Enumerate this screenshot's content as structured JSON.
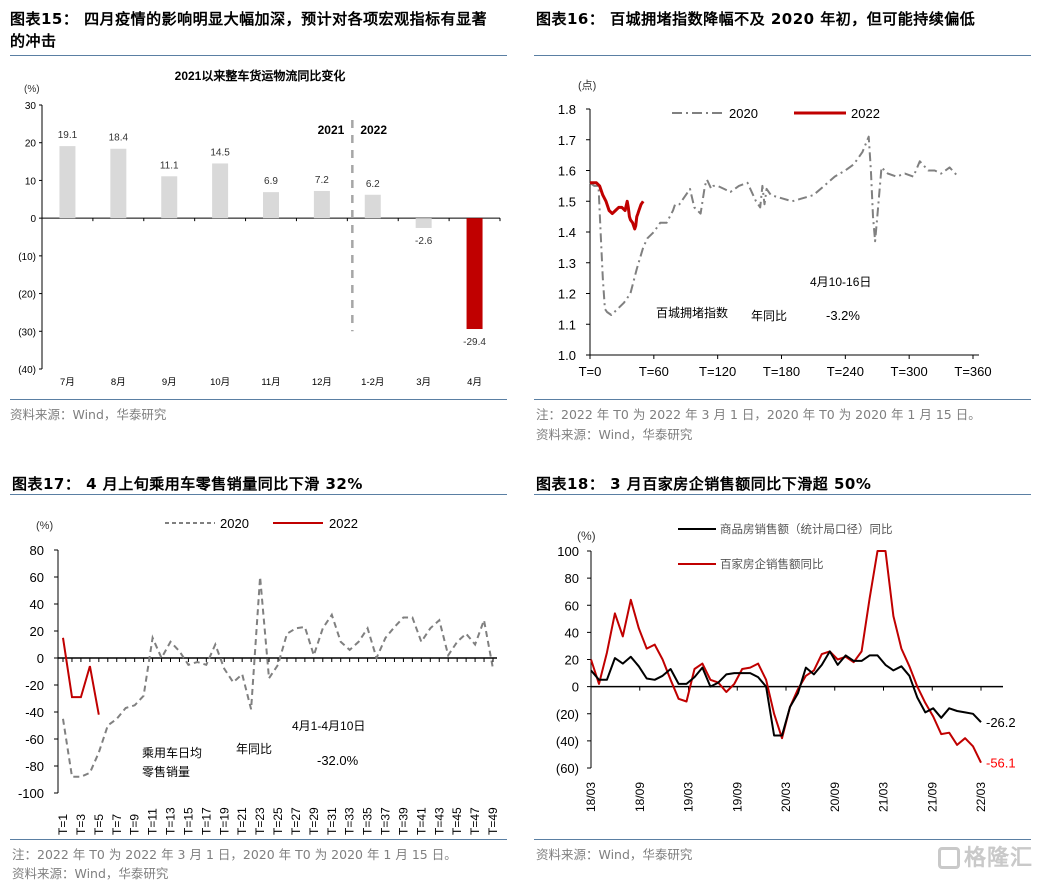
{
  "panels": {
    "p15": {
      "title_line1": "图表15： 四月疫情的影响明显大幅加深，预计对各项宏观指标有显著",
      "title_line2": "的冲击",
      "source": "资料来源：Wind，华泰研究"
    },
    "p16": {
      "title": "图表16： 百城拥堵指数降幅不及 2020 年初，但可能持续偏低",
      "note": "注：2022 年 T0 为 2022 年 3 月 1 日，2020 年 T0 为 2020 年 1 月 15 日。",
      "source": "资料来源：Wind，华泰研究"
    },
    "p17": {
      "title": "图表17： 4 月上旬乘用车零售销量同比下滑 32%",
      "note": "注：2022 年 T0 为 2022 年 3 月 1 日，2020 年 T0 为 2020 年 1 月 15 日。",
      "source": "资料来源：Wind，华泰研究"
    },
    "p18": {
      "title": "图表18： 3 月百家房企销售额同比下滑超 50%",
      "source": "资料来源：Wind，华泰研究"
    }
  },
  "watermark": "格隆汇",
  "colors": {
    "red": "#c00000",
    "gray_bar": "#d9d9d9",
    "gray_line": "#808080",
    "black": "#000000",
    "rule": "#5a7fa3"
  },
  "chart_data": [
    {
      "id": "c15",
      "type": "bar",
      "title": "2021以来整车货运物流同比变化",
      "ylabel": "(%)",
      "ylim": [
        -40,
        30
      ],
      "yticks": [
        30,
        20,
        10,
        0,
        -10,
        -20,
        -30,
        -40
      ],
      "ytick_labels": [
        "30",
        "20",
        "10",
        "0",
        "(10)",
        "(20)",
        "(30)",
        "(40)"
      ],
      "categories": [
        "7月",
        "8月",
        "9月",
        "10月",
        "11月",
        "12月",
        "1-2月",
        "3月",
        "4月"
      ],
      "values": [
        19.1,
        18.4,
        11.1,
        14.5,
        6.9,
        7.2,
        6.2,
        -2.6,
        -29.4
      ],
      "data_labels": [
        "19.1",
        "18.4",
        "11.1",
        "14.5",
        "6.9",
        "7.2",
        "6.2",
        "-2.6",
        "-29.4"
      ],
      "highlight_index": 8,
      "divider_after_index": 5,
      "divider_labels": [
        "2021",
        "2022"
      ],
      "grid": false
    },
    {
      "id": "c16",
      "type": "line",
      "ylabel": "(点)",
      "ylim": [
        1.0,
        1.8
      ],
      "yticks": [
        "1.8",
        "1.7",
        "1.6",
        "1.5",
        "1.4",
        "1.3",
        "1.2",
        "1.1",
        "1.0"
      ],
      "xlim": [
        0,
        360
      ],
      "xticks": [
        "T=0",
        "T=60",
        "T=120",
        "T=180",
        "T=240",
        "T=300",
        "T=360"
      ],
      "legend": [
        "2020",
        "2022"
      ],
      "legend_position": "top",
      "annotations": [
        "4月10-16日",
        "百城拥堵指数",
        "年同比",
        "-3.2%"
      ],
      "series": [
        {
          "name": "2020",
          "style": "dash-dot",
          "color": "#808080",
          "x": [
            0,
            4,
            8,
            10,
            12,
            14,
            16,
            20,
            26,
            32,
            38,
            44,
            50,
            54,
            60,
            66,
            72,
            78,
            80,
            84,
            86,
            90,
            94,
            98,
            104,
            108,
            110,
            114,
            116,
            120,
            126,
            132,
            140,
            148,
            156,
            160,
            162,
            164,
            166,
            170,
            180,
            190,
            200,
            210,
            220,
            230,
            240,
            248,
            256,
            262,
            264,
            266,
            268,
            270,
            274,
            280,
            288,
            296,
            304,
            310,
            318,
            324,
            330,
            338,
            346
          ],
          "y": [
            1.56,
            1.55,
            1.55,
            1.4,
            1.25,
            1.15,
            1.14,
            1.13,
            1.15,
            1.17,
            1.2,
            1.28,
            1.35,
            1.38,
            1.4,
            1.43,
            1.43,
            1.47,
            1.49,
            1.49,
            1.5,
            1.52,
            1.54,
            1.48,
            1.46,
            1.55,
            1.57,
            1.54,
            1.55,
            1.55,
            1.54,
            1.53,
            1.55,
            1.56,
            1.5,
            1.48,
            1.55,
            1.49,
            1.54,
            1.52,
            1.51,
            1.5,
            1.51,
            1.52,
            1.55,
            1.58,
            1.6,
            1.62,
            1.66,
            1.71,
            1.6,
            1.45,
            1.37,
            1.45,
            1.61,
            1.59,
            1.58,
            1.59,
            1.58,
            1.63,
            1.6,
            1.6,
            1.59,
            1.61,
            1.58
          ]
        },
        {
          "name": "2022",
          "style": "solid",
          "color": "#c00000",
          "x": [
            0,
            3,
            6,
            9,
            12,
            15,
            18,
            21,
            24,
            27,
            30,
            33,
            35,
            36,
            37,
            38,
            40,
            42,
            43,
            44,
            45,
            46,
            47,
            48,
            50
          ],
          "y": [
            1.56,
            1.56,
            1.56,
            1.55,
            1.52,
            1.5,
            1.47,
            1.46,
            1.47,
            1.48,
            1.48,
            1.47,
            1.5,
            1.48,
            1.45,
            1.44,
            1.43,
            1.41,
            1.42,
            1.45,
            1.46,
            1.47,
            1.48,
            1.49,
            1.5
          ]
        }
      ]
    },
    {
      "id": "c17",
      "type": "line",
      "ylabel": "(%)",
      "ylim": [
        -100,
        80
      ],
      "yticks": [
        "80",
        "60",
        "40",
        "20",
        "0",
        "-20",
        "-40",
        "-60",
        "-80",
        "-100"
      ],
      "xticks": [
        "T=1",
        "T=3",
        "T=5",
        "T=7",
        "T=9",
        "T=11",
        "T=13",
        "T=15",
        "T=17",
        "T=19",
        "T=21",
        "T=23",
        "T=25",
        "T=27",
        "T=29",
        "T=31",
        "T=33",
        "T=35",
        "T=37",
        "T=39",
        "T=41",
        "T=43",
        "T=45",
        "T=47",
        "T=49"
      ],
      "legend": [
        "2020",
        "2022"
      ],
      "legend_position": "top",
      "annotations": [
        "4月1-4月10日",
        "乘用车日均",
        "零售销量",
        "年同比",
        "-32.0%"
      ],
      "series": [
        {
          "name": "2020",
          "style": "dashed",
          "color": "#808080",
          "x": [
            1,
            2,
            3,
            4,
            5,
            6,
            7,
            8,
            9,
            10,
            11,
            12,
            13,
            14,
            15,
            16,
            17,
            18,
            19,
            20,
            21,
            22,
            23,
            24,
            25,
            26,
            27,
            28,
            29,
            30,
            31,
            32,
            33,
            34,
            35,
            36,
            37,
            38,
            39,
            40,
            41,
            42,
            43,
            44,
            45,
            46,
            47,
            48,
            49
          ],
          "y": [
            -45,
            -88,
            -88,
            -85,
            -70,
            -50,
            -45,
            -37,
            -35,
            -28,
            15,
            0,
            12,
            5,
            -5,
            -3,
            -5,
            10,
            -8,
            -18,
            -12,
            -38,
            60,
            -15,
            -5,
            18,
            22,
            23,
            2,
            22,
            32,
            12,
            6,
            12,
            22,
            0,
            15,
            23,
            30,
            30,
            12,
            22,
            28,
            2,
            12,
            18,
            10,
            28,
            -8
          ]
        },
        {
          "name": "2022",
          "style": "solid",
          "color": "#c00000",
          "x": [
            1,
            2,
            3,
            4,
            5
          ],
          "y": [
            15,
            -29,
            -29,
            -6,
            -42
          ]
        }
      ]
    },
    {
      "id": "c18",
      "type": "line",
      "ylabel": "(%)",
      "ylim": [
        -60,
        100
      ],
      "yticks": [
        100,
        80,
        60,
        40,
        20,
        0,
        -20,
        -40,
        -60
      ],
      "ytick_labels": [
        "100",
        "80",
        "60",
        "40",
        "20",
        "0",
        "(20)",
        "(40)",
        "(60)"
      ],
      "xticks": [
        "18/03",
        "18/09",
        "19/03",
        "19/09",
        "20/03",
        "20/09",
        "21/03",
        "21/09",
        "22/03"
      ],
      "legend": [
        "商品房销售额（统计局口径）同比",
        "百家房企销售额同比"
      ],
      "legend_position": "top",
      "end_labels": [
        "-26.2",
        "-56.1"
      ],
      "series": [
        {
          "name": "商品房销售额（统计局口径）同比",
          "color": "#000000",
          "values": [
            12,
            5,
            5,
            21,
            17,
            22,
            15,
            6,
            5,
            8,
            13,
            2,
            2,
            7,
            14,
            0,
            3,
            9,
            10,
            10,
            10,
            7,
            0,
            -36,
            -36,
            -15,
            -5,
            14,
            9,
            16,
            26,
            16,
            23,
            19,
            19,
            23,
            23,
            16,
            12,
            15,
            8,
            -8,
            -19,
            -16,
            -23,
            -16,
            -18,
            -19,
            -20,
            -26.2
          ]
        },
        {
          "name": "百家房企销售额同比",
          "color": "#c00000",
          "values": [
            20,
            2,
            25,
            54,
            37,
            64,
            43,
            28,
            31,
            20,
            5,
            -9,
            -11,
            13,
            17,
            5,
            3,
            -4,
            2,
            13,
            14,
            17,
            5,
            -20,
            -38,
            -15,
            -2,
            8,
            12,
            24,
            26,
            20,
            22,
            18,
            26,
            65,
            130,
            130,
            52,
            28,
            15,
            0,
            -12,
            -22,
            -35,
            -34,
            -43,
            -38,
            -44,
            -56.1
          ]
        }
      ]
    }
  ]
}
